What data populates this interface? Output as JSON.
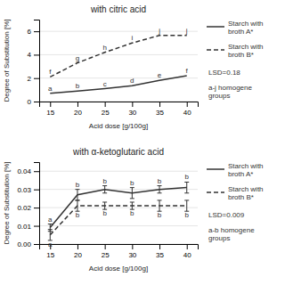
{
  "chart_data": [
    {
      "type": "line",
      "title": "with citric acid",
      "x_label": "Acid dose [g/100g]",
      "y_label": "Degree of Substitution [%]",
      "x": [
        15,
        20,
        25,
        30,
        35,
        40
      ],
      "xlim": [
        13,
        42
      ],
      "xticks": [
        15,
        20,
        25,
        30,
        35,
        40
      ],
      "ylim": [
        0,
        7
      ],
      "yticks": [
        0,
        2,
        4,
        6
      ],
      "grid": true,
      "legend": "right",
      "series": [
        {
          "name": "Starch with\nbroth A*",
          "color": "#333333",
          "line_style": "solid",
          "values": [
            0.7,
            0.9,
            1.1,
            1.35,
            1.8,
            2.2
          ],
          "point_labels": [
            "a",
            "b",
            "c",
            "d",
            "e",
            "f"
          ]
        },
        {
          "name": "Starch with\nbroth B*",
          "color": "#333333",
          "line_style": "dashed",
          "values": [
            2.1,
            3.3,
            4.2,
            5.0,
            5.65,
            5.65
          ],
          "point_labels": [
            "f",
            "g",
            "h",
            "i",
            "j",
            "j"
          ]
        }
      ],
      "annotations": [
        "LSD=0.18",
        "a-j homogene\ngroups"
      ]
    },
    {
      "type": "line",
      "title": "with α-ketoglutaric acid",
      "x_label": "Acid dose [g/100g]",
      "y_label": "Degree of Substitution [%]",
      "x": [
        15,
        20,
        25,
        30,
        35,
        40
      ],
      "xlim": [
        13,
        42
      ],
      "xticks": [
        15,
        20,
        25,
        30,
        35,
        40
      ],
      "ylim": [
        0.0,
        0.045
      ],
      "yticks": [
        {
          "value": 0,
          "label": "0.00"
        },
        0.01,
        0.02,
        0.03,
        0.04
      ],
      "grid": true,
      "legend": "right",
      "series": [
        {
          "name": "Starch with\nbroth A*",
          "color": "#333333",
          "line_style": "solid",
          "values": [
            0.009,
            0.027,
            0.03,
            0.028,
            0.03,
            0.031
          ],
          "errors": [
            0.002,
            0.003,
            0.002,
            0.003,
            0.002,
            0.003
          ],
          "point_labels": [
            "a",
            "b",
            "b",
            "b",
            "b",
            "b"
          ]
        },
        {
          "name": "Starch with\nbroth B*",
          "color": "#333333",
          "line_style": "dashed",
          "values": [
            0.005,
            0.021,
            0.021,
            0.021,
            0.021,
            0.021
          ],
          "errors": [
            0.003,
            0.003,
            0.002,
            0.002,
            0.003,
            0.003
          ],
          "point_labels": [
            "a",
            "b",
            "b",
            "b",
            "b",
            "b"
          ]
        }
      ],
      "annotations": [
        "LSD=0.009",
        "a-b homogene\ngroups"
      ]
    }
  ]
}
